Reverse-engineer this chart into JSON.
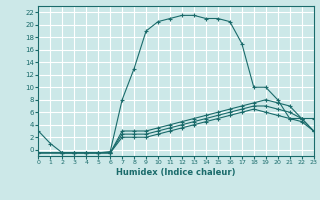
{
  "xlabel": "Humidex (Indice chaleur)",
  "bg_color": "#cce8e8",
  "grid_color": "#ffffff",
  "line_color": "#1a6b6b",
  "xlim": [
    0,
    23
  ],
  "ylim": [
    -1,
    23
  ],
  "xticks": [
    0,
    1,
    2,
    3,
    4,
    5,
    6,
    7,
    8,
    9,
    10,
    11,
    12,
    13,
    14,
    15,
    16,
    17,
    18,
    19,
    20,
    21,
    22,
    23
  ],
  "yticks": [
    0,
    2,
    4,
    6,
    8,
    10,
    12,
    14,
    16,
    18,
    20,
    22
  ],
  "series": [
    {
      "x": [
        0,
        1,
        2,
        3,
        4,
        5,
        6,
        7,
        8,
        9,
        10,
        11,
        12,
        13,
        14,
        15,
        16,
        17,
        18,
        19,
        20,
        21,
        22,
        23
      ],
      "y": [
        3,
        1,
        -0.5,
        -0.5,
        -0.5,
        -0.5,
        -0.3,
        8,
        13,
        19,
        20.5,
        21,
        21.5,
        21.5,
        21,
        21,
        20.5,
        17,
        10,
        10,
        8,
        5,
        5,
        3
      ]
    },
    {
      "x": [
        0,
        2,
        3,
        4,
        5,
        6,
        7,
        8,
        9,
        10,
        11,
        12,
        13,
        14,
        15,
        16,
        17,
        18,
        19,
        20,
        21,
        22,
        23
      ],
      "y": [
        -0.5,
        -0.5,
        -0.5,
        -0.5,
        -0.5,
        -0.5,
        3,
        3,
        3,
        3.5,
        4,
        4.5,
        5,
        5.5,
        6,
        6.5,
        7,
        7.5,
        8,
        7.5,
        7,
        5,
        3
      ]
    },
    {
      "x": [
        0,
        2,
        3,
        4,
        5,
        6,
        7,
        8,
        9,
        10,
        11,
        12,
        13,
        14,
        15,
        16,
        17,
        18,
        19,
        20,
        21,
        22,
        23
      ],
      "y": [
        -0.5,
        -0.5,
        -0.5,
        -0.5,
        -0.5,
        -0.5,
        2.5,
        2.5,
        2.5,
        3,
        3.5,
        4,
        4.5,
        5,
        5.5,
        6,
        6.5,
        7,
        7,
        6.5,
        6,
        5,
        5
      ]
    },
    {
      "x": [
        0,
        2,
        3,
        4,
        5,
        6,
        7,
        8,
        9,
        10,
        11,
        12,
        13,
        14,
        15,
        16,
        17,
        18,
        19,
        20,
        21,
        22,
        23
      ],
      "y": [
        -0.5,
        -0.5,
        -0.5,
        -0.5,
        -0.5,
        -0.5,
        2,
        2,
        2,
        2.5,
        3,
        3.5,
        4,
        4.5,
        5,
        5.5,
        6,
        6.5,
        6,
        5.5,
        5,
        4.5,
        3
      ]
    }
  ]
}
